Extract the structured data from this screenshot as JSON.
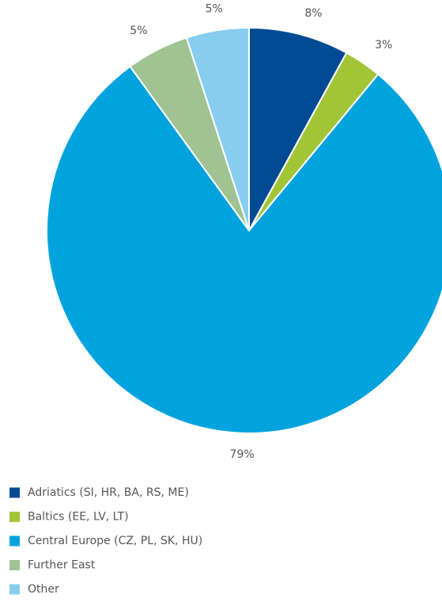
{
  "chart_data": {
    "type": "pie",
    "categories": [
      "Adriatics (SI, HR, BA, RS, ME)",
      "Baltics (EE, LV, LT)",
      "Central Europe (CZ, PL, SK, HU)",
      "Further East",
      "Other"
    ],
    "values": [
      8,
      3,
      79,
      5,
      5
    ],
    "value_labels": [
      "8%",
      "3%",
      "79%",
      "5%",
      "5%"
    ],
    "colors": [
      "#004b93",
      "#a2c538",
      "#00a3de",
      "#9fc393",
      "#87cdf0"
    ]
  }
}
